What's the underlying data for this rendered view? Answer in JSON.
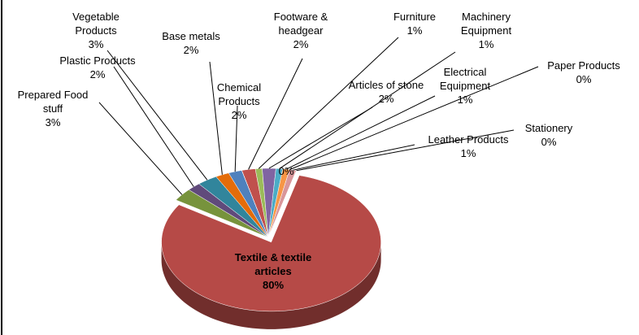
{
  "chart_data": {
    "type": "pie",
    "categories": [
      "Footware & headgear",
      "Furniture",
      "Articles of stone",
      "Machinery Equipment",
      "Electrical Equipment",
      "Paper Products",
      "Leather Products",
      "Stationery",
      "Textile & textile articles",
      "Prepared Food stuff",
      "Plastic Products",
      "Vegetable Products",
      "Base metals",
      "Chemical Products",
      null
    ],
    "values": [
      2,
      1,
      2,
      1,
      1,
      0,
      1,
      0,
      80,
      3,
      2,
      3,
      2,
      2,
      0
    ],
    "value_labels": [
      "2%",
      "1%",
      "2%",
      "1%",
      "1%",
      "0%",
      "1%",
      "0%",
      "80%",
      "3%",
      "2%",
      "3%",
      "2%",
      "2%",
      "0%"
    ],
    "colors": [
      "#c0504d",
      "#9bbb59",
      "#8064a2",
      "#4bacc6",
      "#f79646",
      "#a5b6d6",
      "#d9969a",
      "#2c4d75",
      "#b64a47",
      "#77933c",
      "#604a7b",
      "#31859c",
      "#e46c0a",
      "#4f81bd",
      "#bfbfbf"
    ]
  }
}
